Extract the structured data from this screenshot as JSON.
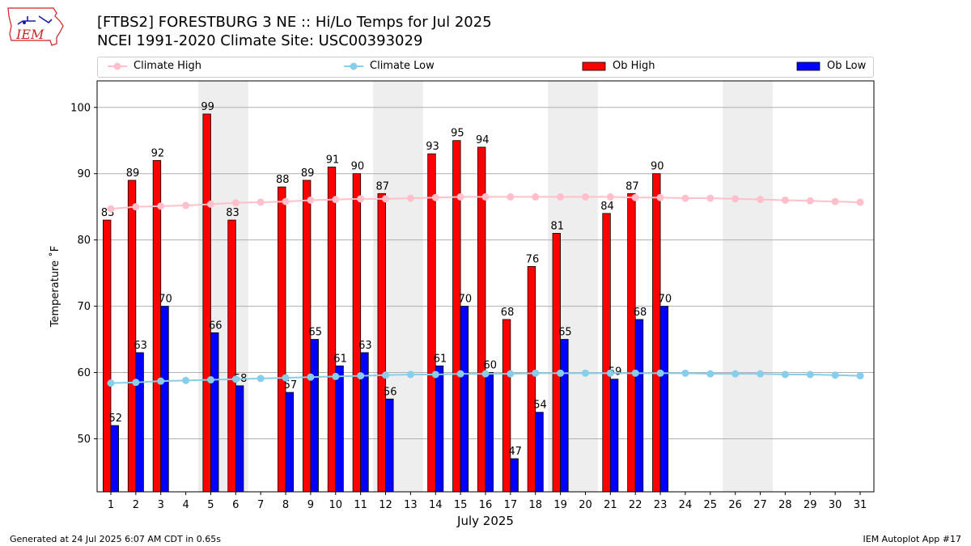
{
  "header": {
    "title_line1": "[FTBS2] FORESTBURG 3 NE :: Hi/Lo Temps for Jul 2025",
    "title_line2": "NCEI 1991-2020 Climate Site: USC00393029",
    "logo_text": "IEM"
  },
  "legend": {
    "climate_high": "Climate High",
    "climate_low": "Climate Low",
    "ob_high": "Ob High",
    "ob_low": "Ob Low"
  },
  "footer": {
    "left": "Generated at 24 Jul 2025 6:07 AM CDT in 0.65s",
    "right": "IEM Autoplot App #17"
  },
  "colors": {
    "ob_high": "#ff0000",
    "ob_low": "#0000ff",
    "climate_high": "#ffc0cb",
    "climate_low": "#87ceeb",
    "weekend_shade": "#eeeeee",
    "grid": "#b0b0b0"
  },
  "chart_data": {
    "type": "bar",
    "xlabel": "July 2025",
    "ylabel": "Temperature ˚F",
    "ylim": [
      42,
      104
    ],
    "yticks": [
      50,
      60,
      70,
      80,
      90,
      100
    ],
    "grid": "horizontal",
    "legend_position": "top",
    "weekend_shaded_days": [
      5,
      6,
      12,
      13,
      19,
      20,
      26,
      27
    ],
    "categories": [
      "1",
      "2",
      "3",
      "4",
      "5",
      "6",
      "7",
      "8",
      "9",
      "10",
      "11",
      "12",
      "13",
      "14",
      "15",
      "16",
      "17",
      "18",
      "19",
      "20",
      "21",
      "22",
      "23",
      "24",
      "25",
      "26",
      "27",
      "28",
      "29",
      "30",
      "31"
    ],
    "series": [
      {
        "name": "Ob High",
        "kind": "bar",
        "values": [
          83,
          89,
          92,
          null,
          99,
          83,
          null,
          88,
          89,
          91,
          90,
          87,
          null,
          93,
          95,
          94,
          68,
          76,
          81,
          null,
          84,
          87,
          90,
          null,
          null,
          null,
          null,
          null,
          null,
          null,
          null
        ]
      },
      {
        "name": "Ob Low",
        "kind": "bar",
        "values": [
          52,
          63,
          70,
          null,
          66,
          58,
          null,
          57,
          65,
          61,
          63,
          56,
          null,
          61,
          70,
          60,
          47,
          54,
          65,
          null,
          59,
          68,
          70,
          null,
          null,
          null,
          null,
          null,
          null,
          null,
          null
        ]
      },
      {
        "name": "Climate High",
        "kind": "line",
        "values": [
          84.7,
          85.0,
          85.1,
          85.2,
          85.4,
          85.6,
          85.7,
          85.8,
          86.0,
          86.1,
          86.2,
          86.2,
          86.3,
          86.4,
          86.5,
          86.5,
          86.5,
          86.5,
          86.5,
          86.5,
          86.5,
          86.4,
          86.4,
          86.3,
          86.3,
          86.2,
          86.1,
          86.0,
          85.9,
          85.8,
          85.7
        ]
      },
      {
        "name": "Climate Low",
        "kind": "line",
        "values": [
          58.4,
          58.5,
          58.7,
          58.8,
          58.9,
          59.0,
          59.1,
          59.2,
          59.3,
          59.4,
          59.5,
          59.6,
          59.7,
          59.7,
          59.8,
          59.8,
          59.8,
          59.9,
          59.9,
          59.9,
          59.9,
          59.9,
          59.9,
          59.9,
          59.8,
          59.8,
          59.8,
          59.7,
          59.7,
          59.6,
          59.5
        ]
      }
    ]
  }
}
